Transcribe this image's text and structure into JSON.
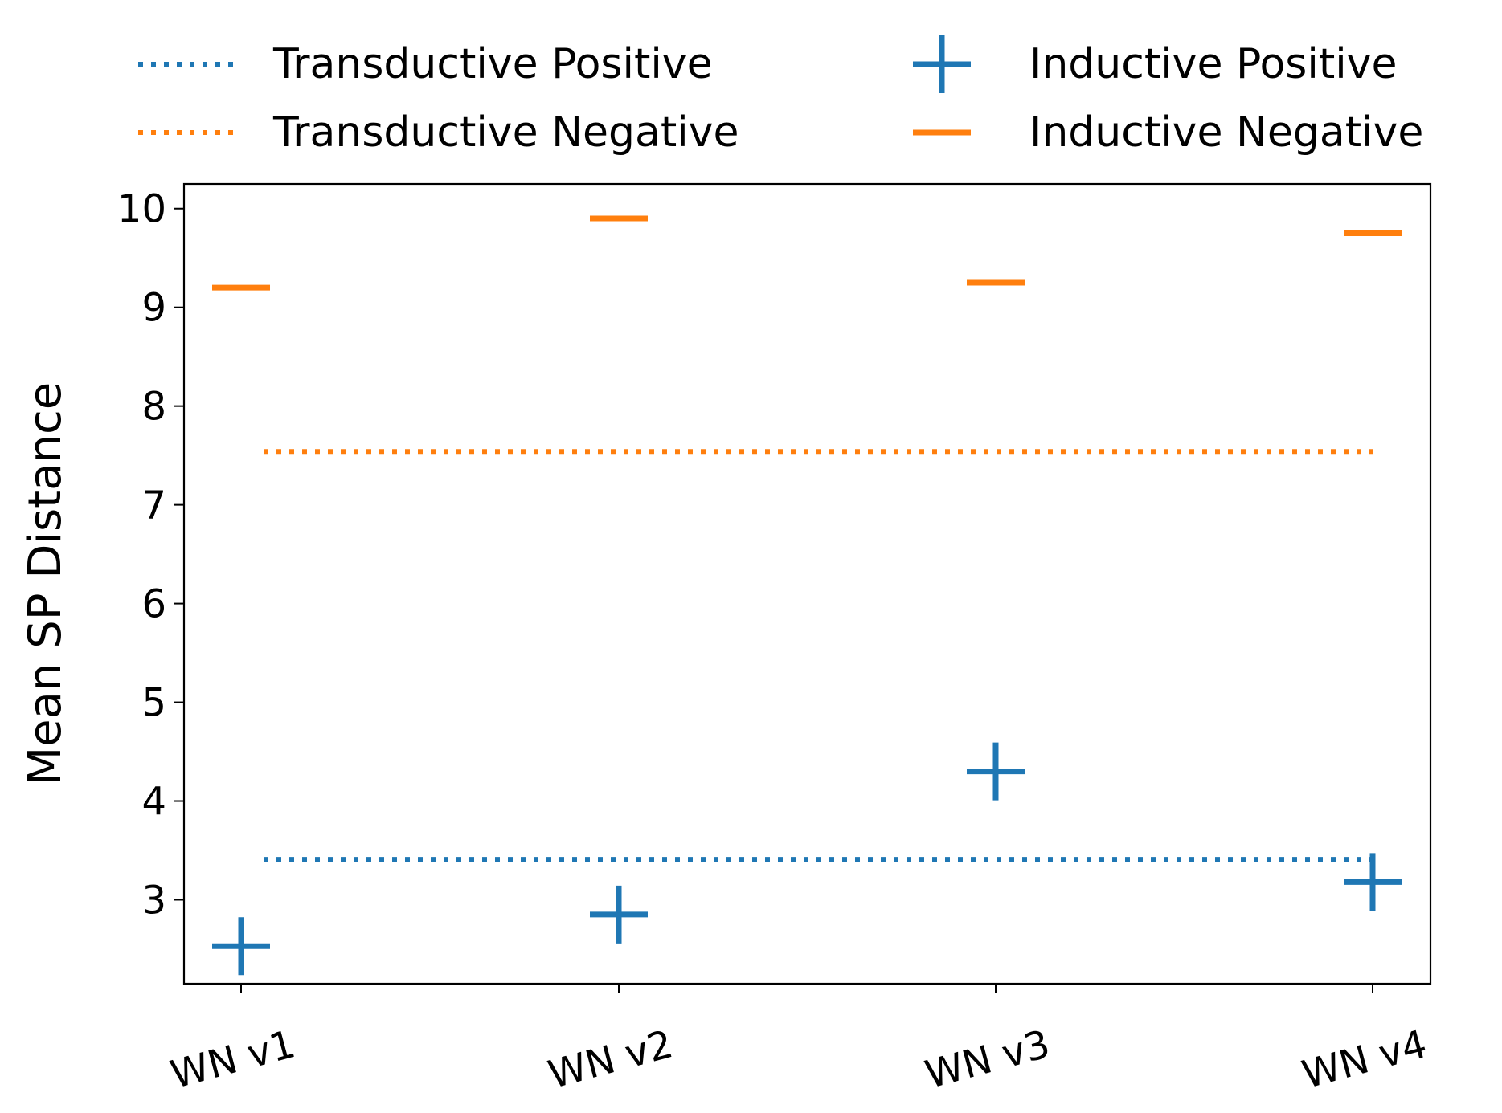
{
  "chart_data": {
    "type": "scatter",
    "categories": [
      "WN v1",
      "WN v2",
      "WN v3",
      "WN v4"
    ],
    "ylabel": "Mean SP Distance",
    "xlabel": "",
    "ylim": [
      2.15,
      10.25
    ],
    "yticks": [
      3,
      4,
      5,
      6,
      7,
      8,
      9,
      10
    ],
    "grid": false,
    "legend_position": "top, outside plot, two columns",
    "reference_lines": [
      {
        "name": "Transductive Positive",
        "value": 3.41,
        "style": "dotted",
        "color": "#1f77b4"
      },
      {
        "name": "Transductive Negative",
        "value": 7.54,
        "style": "dotted",
        "color": "#ff7f0e"
      }
    ],
    "series": [
      {
        "name": "Inductive Positive",
        "marker": "plus",
        "color": "#1f77b4",
        "values": [
          2.53,
          2.85,
          4.3,
          3.18
        ]
      },
      {
        "name": "Inductive Negative",
        "marker": "hline",
        "color": "#ff7f0e",
        "values": [
          9.2,
          9.9,
          9.25,
          9.75
        ]
      }
    ]
  }
}
